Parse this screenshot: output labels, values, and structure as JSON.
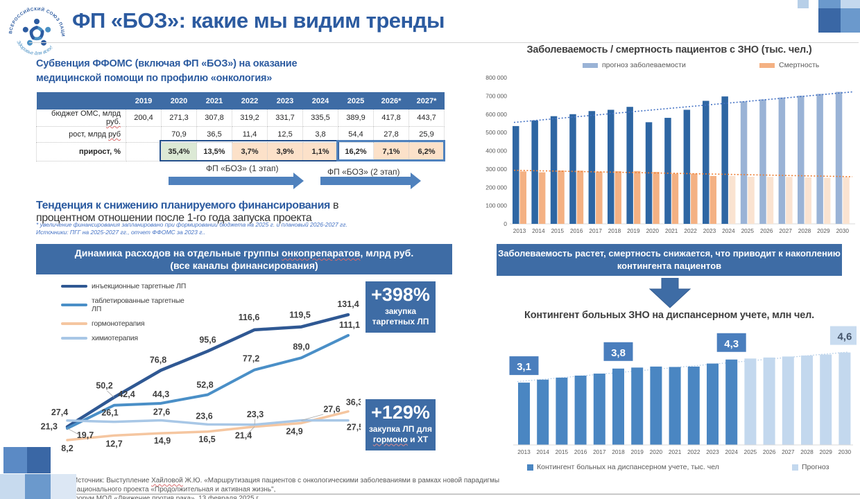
{
  "page": {
    "title": "ФП «БОЗ»: какие мы видим тренды"
  },
  "logo": {
    "ring_text": "ВСЕРОССИЙСКИЙ СОЮЗ ПАЦИЕНТОВ",
    "motto": "Здоровье для всех!"
  },
  "left": {
    "heading": "Субвенция ФФОМС (включая ФП «БОЗ») на оказание медицинской помощи по профилю «онкология»",
    "table": {
      "years": [
        "",
        "2019",
        "2020",
        "2021",
        "2022",
        "2023",
        "2024",
        "2025",
        "2026*",
        "2027*"
      ],
      "rows": [
        {
          "label_pre": "бюджет ОМС, млрд ",
          "label_wavy": "руб.",
          "label_post": "",
          "values": [
            "200,4",
            "271,3",
            "307,8",
            "319,2",
            "331,7",
            "335,5",
            "389,9",
            "417,8",
            "443,7"
          ]
        },
        {
          "label_pre": "рост, млрд ",
          "label_wavy": "руб",
          "label_post": "",
          "values": [
            "",
            "70,9",
            "36,5",
            "11,4",
            "12,5",
            "3,8",
            "54,4",
            "27,8",
            "25,9"
          ]
        },
        {
          "label_pre": "прирост, %",
          "label_wavy": "",
          "label_post": "",
          "values": [
            "",
            "35,4%",
            "13,5%",
            "3,7%",
            "3,9%",
            "1,1%",
            "16,2%",
            "7,1%",
            "6,2%"
          ]
        }
      ]
    },
    "stage1_label": "ФП «БОЗ» (1 этап)",
    "stage2_label": "ФП «БОЗ» (2 этап)",
    "trend_bold": "Тенденция к снижению планируемого финансирования",
    "trend_rest": " в процентном отношении после 1-го года запуска проекта",
    "footnote1": "* увеличение финансирования запланировано при формировании бюджета на 2025 г. и плановый 2026-2027 гг.",
    "footnote2": "Источники: ПГГ на 2025-2027 гг., отчет ФФОМС за 2023 г..",
    "banner_pre": "Динамика расходов на отдельные группы ",
    "banner_wavy": "онкопрепаратов",
    "banner_post": ", млрд руб.",
    "banner_line2": "(все каналы финансирования)",
    "badge1": {
      "pct": "+398%",
      "caption": "закупка таргетных ЛП"
    },
    "badge2": {
      "pct": "+129%",
      "caption_pre": "закупка ЛП для ",
      "caption_wavy": "гормоно",
      "caption_post": " и ХТ"
    }
  },
  "right": {
    "banner_text": "Заболеваемость растет, смертность снижается, что приводит к накоплению контингента пациентов"
  },
  "footer": {
    "line1_pre": "Источник: Выступление ",
    "line1_wavy": "Хайловой",
    "line1_post": " Ж.Ю. «Маршрутизация пациентов с онкологическими заболеваниями в рамках новой парадигмы национального проекта «Продолжительная и активная жизнь\",",
    "line2": "форум МОД «Движение против рака», 13 февраля 2025 г."
  },
  "chart_data": [
    {
      "id": "oncodrug-spend",
      "type": "line",
      "title": "Динамика расходов на отдельные группы онкопрепаратов, млрд руб.",
      "subtitle": "(все каналы финансирования)",
      "x_tick_labels_visible": false,
      "grid": false,
      "legend_position": "top-left",
      "series": [
        {
          "name": "инъекционные таргетные ЛП",
          "color": "#2f5893",
          "values": [
            21.3,
            50.2,
            76.8,
            95.6,
            116.6,
            119.5,
            131.4
          ],
          "labels": [
            "21,3",
            "50,2",
            "76,8",
            "95,6",
            "116,6",
            "119,5",
            "131,4"
          ]
        },
        {
          "name": "таблетированные таргетные ЛП",
          "color": "#4a8fc7",
          "values": [
            19.7,
            42.4,
            44.3,
            52.8,
            77.2,
            89.0,
            111.1
          ],
          "labels": [
            "19,7",
            "42,4",
            "44,3",
            "52,8",
            "77,2",
            "89,0",
            "111,1"
          ]
        },
        {
          "name": "гормонотерапия",
          "color": "#f5c6a0",
          "values": [
            8.2,
            12.7,
            14.9,
            16.5,
            21.4,
            24.9,
            36.3
          ],
          "labels": [
            "8,2",
            "12,7",
            "14,9",
            "16,5",
            "21,4",
            "24,9",
            "36,3"
          ]
        },
        {
          "name": "химиотерапия",
          "color": "#a8c7e6",
          "values": [
            27.4,
            26.1,
            27.6,
            23.6,
            23.3,
            27.6,
            27.5
          ],
          "labels": [
            "27,4",
            "26,1",
            "27,6",
            "23,6",
            "23,3",
            "27,6",
            "27,5"
          ]
        }
      ]
    },
    {
      "id": "incidence-mortality",
      "type": "bar",
      "title": "Заболеваемость / смертность пациентов с ЗНО (тыс. чел.)",
      "categories": [
        "2013",
        "2014",
        "2015",
        "2016",
        "2017",
        "2018",
        "2019",
        "2020",
        "2021",
        "2022",
        "2023",
        "2024",
        "2025",
        "2026",
        "2027",
        "2028",
        "2029",
        "2030"
      ],
      "y_ticks": [
        "0",
        "100 000",
        "200 000",
        "300 000",
        "400 000",
        "500 000",
        "600 000",
        "700 000",
        "800 000"
      ],
      "ylim": [
        0,
        800000
      ],
      "values_estimated_from_pixels": true,
      "series": [
        {
          "name": "прогноз заболеваемости",
          "color_actual": "#2e66a3",
          "color_forecast": "#9ab3d6",
          "forecast_from_index": 12,
          "values": [
            535000,
            566000,
            589000,
            600000,
            617000,
            624000,
            640000,
            556000,
            580000,
            624000,
            673000,
            697000,
            670000,
            681000,
            691000,
            701000,
            711000,
            722000
          ]
        },
        {
          "name": "Смертность",
          "color_actual": "#f4b183",
          "color_forecast": "#fae3d1",
          "forecast_from_index": 11,
          "values": [
            287000,
            282000,
            292000,
            291000,
            286000,
            288000,
            289000,
            284000,
            275000,
            275000,
            262000,
            262000,
            258000,
            257000,
            257000,
            254000,
            252000,
            256000
          ]
        }
      ],
      "trend_lines": [
        {
          "color": "#4472c4",
          "from": 555000,
          "to": 722000
        },
        {
          "color": "#ed7d31",
          "from": 293000,
          "to": 258000
        }
      ]
    },
    {
      "id": "contingent",
      "type": "bar",
      "title": "Контингент больных ЗНО на диспансерном учете, млн чел.",
      "categories": [
        "2013",
        "2014",
        "2015",
        "2016",
        "2017",
        "2018",
        "2019",
        "2020",
        "2021",
        "2022",
        "2023",
        "2024",
        "2025",
        "2026",
        "2027",
        "2028",
        "2029",
        "2030"
      ],
      "values_estimated_from_pixels": true,
      "series": [
        {
          "name": "Контингент больных на диспансерном учете, тыс. чел",
          "color_actual": "#4a86c2",
          "color_forecast": "#c3d8ee",
          "forecast_from_index": 12,
          "values": [
            3.1,
            3.25,
            3.35,
            3.45,
            3.55,
            3.8,
            3.85,
            3.9,
            3.88,
            3.9,
            4.05,
            4.25,
            4.3,
            4.35,
            4.4,
            4.45,
            4.5,
            4.6
          ]
        }
      ],
      "callouts": [
        {
          "index": 0,
          "label": "3,1",
          "style": "solid"
        },
        {
          "index": 5,
          "label": "3,8",
          "style": "solid"
        },
        {
          "index": 11,
          "label": "4,3",
          "style": "solid"
        },
        {
          "index": 17,
          "label": "4,6",
          "style": "light"
        }
      ],
      "legend": [
        {
          "label": "Контингент больных на диспансерном учете, тыс. чел",
          "color": "#4a86c2"
        },
        {
          "label": "Прогноз",
          "color": "#c3d8ee"
        }
      ],
      "trend_line": {
        "color": "#a9c6e4"
      }
    }
  ]
}
